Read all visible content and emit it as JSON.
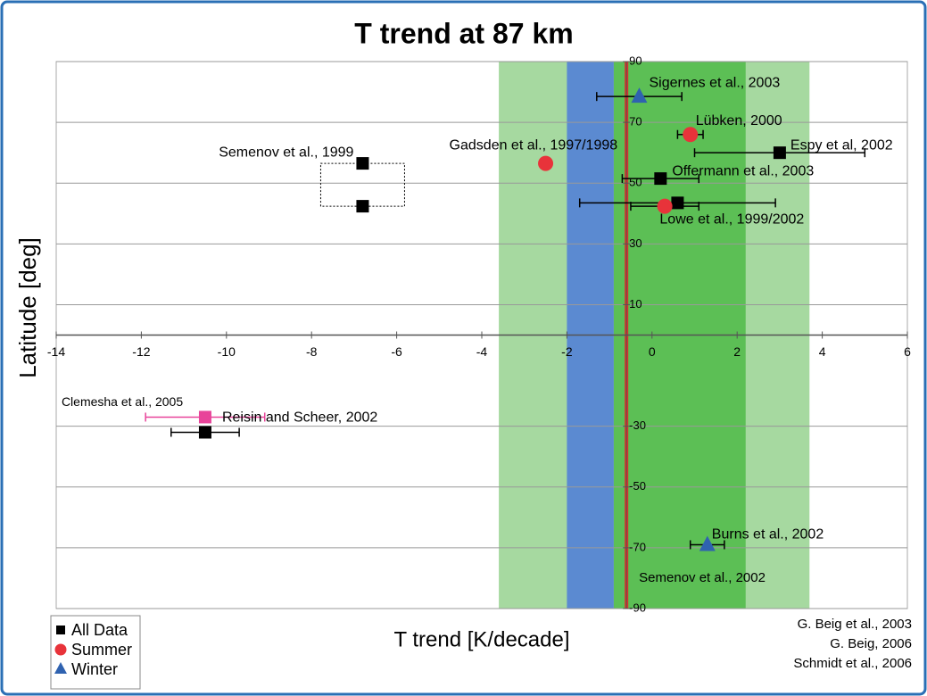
{
  "chart_data": {
    "type": "scatter",
    "title": "T trend at 87 km",
    "x_label": "T trend [K/decade]",
    "y_label": "Latitude [deg]",
    "xlim": [
      -14,
      6
    ],
    "ylim": [
      -90,
      90
    ],
    "xticks": [
      -14,
      -12,
      -10,
      -8,
      -6,
      -4,
      -2,
      0,
      2,
      4,
      6
    ],
    "yticks": [
      90,
      70,
      50,
      30,
      10,
      -30,
      -50,
      -70,
      -90
    ],
    "grid": true,
    "legend": "bottom-left",
    "bands": [
      {
        "from": -3.6,
        "to": 3.7,
        "color": "#a6d9a0"
      },
      {
        "from": -0.9,
        "to": 2.2,
        "color": "#5cbf55"
      },
      {
        "from": -2,
        "to": -0.9,
        "color": "#5b8ad1"
      }
    ],
    "reference_line": {
      "x": -0.6,
      "label": "Semenov et al., 2002",
      "color": "#d9342b"
    },
    "series": [
      {
        "name": "All Data",
        "color": "#000000",
        "marker": "square",
        "x": [
          -6.8,
          -6.8,
          3,
          0.2,
          0.6,
          -10.5,
          -10.5
        ],
        "y": [
          56.5,
          42.4,
          60,
          51.5,
          43.5,
          -27,
          -32
        ],
        "err": [
          null,
          null,
          2,
          0.9,
          2.3,
          1.4,
          0.8
        ],
        "point_colors": [
          "#000000",
          "#000000",
          "#000000",
          "#000000",
          "#000000",
          "#e8449a",
          "#000000"
        ],
        "labels": [
          "Semenov et al., 1999",
          null,
          "Espy et al, 2002",
          "Offermann et al., 2003",
          "Lowe et al., 1999/2002",
          "Clemesha et al., 2005",
          "Reisin and Scheer, 2002"
        ]
      },
      {
        "name": "Summer",
        "color": "#e8333a",
        "marker": "circle",
        "x": [
          0.9,
          -2.5,
          0.3
        ],
        "y": [
          66,
          56.5,
          42.4
        ],
        "err": [
          0.3,
          null,
          0.8
        ],
        "labels": [
          "Lübken, 2000",
          "Gadsden et al., 1997/1998",
          null
        ]
      },
      {
        "name": "Winter",
        "color": "#2f62b0",
        "marker": "triangle",
        "x": [
          -0.3,
          1.3
        ],
        "y": [
          78.5,
          -69
        ],
        "err": [
          1.0,
          0.4
        ],
        "labels": [
          "Sigernes et al., 2003",
          "Burns et al., 2002"
        ]
      }
    ],
    "credits": [
      "G. Beig et al., 2003",
      "G. Beig, 2006",
      "Schmidt et al., 2006"
    ]
  }
}
